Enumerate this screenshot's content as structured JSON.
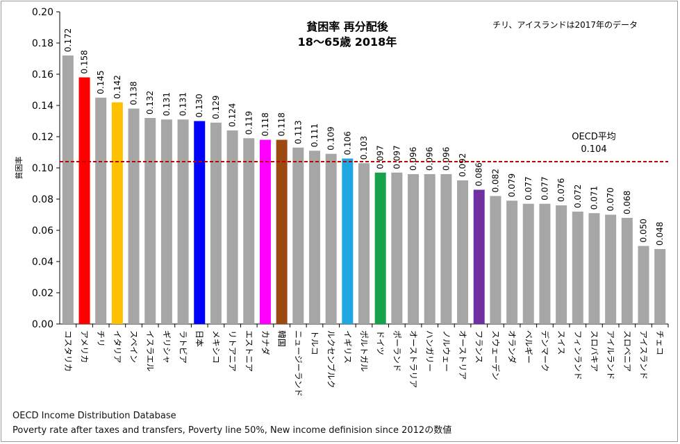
{
  "chart_data": {
    "type": "bar",
    "title_line1": "貧困率 再分配後",
    "title_line2": "18～65歳 2018年",
    "note": "チリ、アイスランドは2017年のデータ",
    "ylabel": "貧困率",
    "xlabel": "",
    "ylim": [
      0,
      0.2
    ],
    "yticks": [
      "0.00",
      "0.02",
      "0.04",
      "0.06",
      "0.08",
      "0.10",
      "0.12",
      "0.14",
      "0.16",
      "0.18",
      "0.20"
    ],
    "categories": [
      "コスタリカ",
      "アメリカ",
      "チリ",
      "イタリア",
      "スペイン",
      "イスラエル",
      "ギリシャ",
      "ラトビア",
      "日本",
      "メキシコ",
      "リトアニア",
      "エストニア",
      "カナダ",
      "韓国",
      "ニュージーランド",
      "トルコ",
      "ルクセンブルク",
      "イギリス",
      "ポルトガル",
      "ドイツ",
      "ポーランド",
      "オーストラリア",
      "ハンガリー",
      "ノルウェー",
      "オーストリア",
      "フランス",
      "スウェーデン",
      "オランダ",
      "ベルギー",
      "デンマーク",
      "スイス",
      "フィンランド",
      "スロバキア",
      "アイルランド",
      "スロベニア",
      "アイスランド",
      "チェコ"
    ],
    "values": [
      0.172,
      0.158,
      0.145,
      0.142,
      0.138,
      0.132,
      0.131,
      0.131,
      0.13,
      0.129,
      0.124,
      0.119,
      0.118,
      0.118,
      0.113,
      0.111,
      0.109,
      0.106,
      0.103,
      0.097,
      0.097,
      0.096,
      0.096,
      0.096,
      0.092,
      0.086,
      0.082,
      0.079,
      0.077,
      0.077,
      0.076,
      0.072,
      0.071,
      0.07,
      0.068,
      0.05,
      0.048
    ],
    "value_labels": [
      "0.172",
      "0.158",
      "0.145",
      "0.142",
      "0.138",
      "0.132",
      "0.131",
      "0.131",
      "0.130",
      "0.129",
      "0.124",
      "0.119",
      "0.118",
      "0.118",
      "0.113",
      "0.111",
      "0.109",
      "0.106",
      "0.103",
      "0.097",
      "0.097",
      "0.096",
      "0.096",
      "0.096",
      "0.092",
      "0.086",
      "0.082",
      "0.079",
      "0.077",
      "0.077",
      "0.076",
      "0.072",
      "0.071",
      "0.070",
      "0.068",
      "0.050",
      "0.048"
    ],
    "colors": [
      "#a6a6a6",
      "#ff0000",
      "#a6a6a6",
      "#ffc000",
      "#a6a6a6",
      "#a6a6a6",
      "#a6a6a6",
      "#a6a6a6",
      "#0000ff",
      "#a6a6a6",
      "#a6a6a6",
      "#a6a6a6",
      "#ff00ff",
      "#9c4a12",
      "#a6a6a6",
      "#a6a6a6",
      "#a6a6a6",
      "#1ea7e1",
      "#a6a6a6",
      "#16a24a",
      "#a6a6a6",
      "#a6a6a6",
      "#a6a6a6",
      "#a6a6a6",
      "#a6a6a6",
      "#7030a0",
      "#a6a6a6",
      "#a6a6a6",
      "#a6a6a6",
      "#a6a6a6",
      "#a6a6a6",
      "#a6a6a6",
      "#a6a6a6",
      "#a6a6a6",
      "#a6a6a6",
      "#a6a6a6",
      "#a6a6a6"
    ],
    "reference_line": {
      "label": "OECD平均",
      "value": 0.104,
      "value_label": "0.104",
      "color": "#c00000"
    },
    "grid": false
  },
  "source": {
    "line1": "OECD Income Distribution Database",
    "line2": "Poverty rate after taxes and transfers, Poverty line 50%, New income definision since 2012の数値"
  }
}
